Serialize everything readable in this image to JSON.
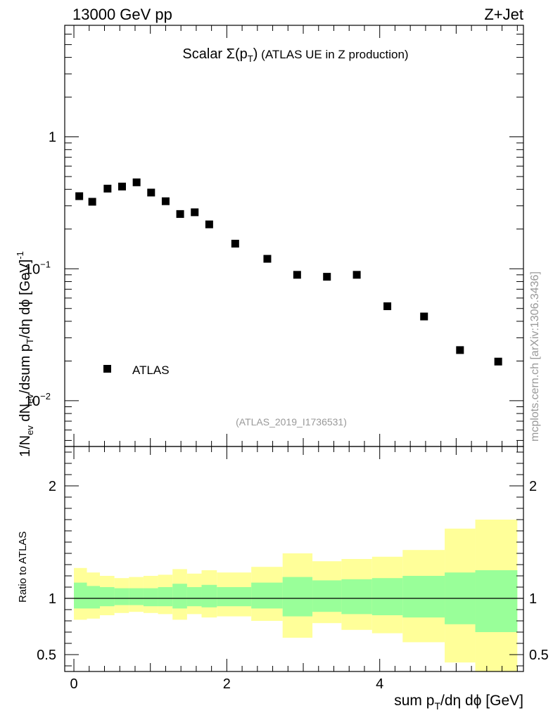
{
  "header": {
    "left_label": "13000 GeV pp",
    "right_label": "Z+Jet"
  },
  "chart_data": {
    "type": "scatter",
    "title_prefix": "Scalar ",
    "title_sigma": "Σ(p",
    "title_sub": "T",
    "title_close": ")",
    "title_suffix": " (ATLAS UE in Z production)",
    "analysis_id": "(ATLAS_2019_I1736531)",
    "watermark": "mcplots.cern.ch [arXiv:1306.3436]",
    "legend": {
      "label": "ATLAS",
      "position": "lower-left"
    },
    "upper_panel": {
      "ylabel_parts": [
        "1/N",
        "ev",
        " dN",
        "ev",
        "/dsum p",
        "T",
        "/dη dϕ  [GeV]",
        "-1"
      ],
      "yscale": "log",
      "ylim": [
        0.0045,
        7.0
      ],
      "yticks": [
        {
          "value": 1,
          "label": "1"
        },
        {
          "value": 0.1,
          "label": "10",
          "exp": "−1"
        },
        {
          "value": 0.01,
          "label": "10",
          "exp": "−2"
        }
      ]
    },
    "lower_panel": {
      "ylabel": "Ratio to ATLAS",
      "ylim": [
        0.35,
        2.35
      ],
      "yticks": [
        {
          "value": 0.5,
          "label": "0.5"
        },
        {
          "value": 1,
          "label": "1"
        },
        {
          "value": 2,
          "label": "2"
        }
      ],
      "reference_line": 1.0
    },
    "x": {
      "label_prefix": "sum p",
      "label_sub": "T",
      "label_suffix": "/dη dϕ [GeV]",
      "xlim": [
        -0.12,
        5.88
      ],
      "xticks": [
        {
          "value": 0,
          "label": "0"
        },
        {
          "value": 2,
          "label": "2"
        },
        {
          "value": 4,
          "label": "4"
        }
      ]
    },
    "series": [
      {
        "name": "ATLAS",
        "marker": "square",
        "color": "#000000",
        "x": [
          0.07,
          0.24,
          0.44,
          0.63,
          0.82,
          1.01,
          1.2,
          1.39,
          1.58,
          1.77,
          2.11,
          2.53,
          2.92,
          3.31,
          3.7,
          4.1,
          4.58,
          5.05,
          5.55
        ],
        "y": [
          0.355,
          0.322,
          0.405,
          0.42,
          0.452,
          0.378,
          0.325,
          0.26,
          0.268,
          0.217,
          0.155,
          0.119,
          0.09,
          0.087,
          0.09,
          0.052,
          0.0435,
          0.0242,
          0.0198
        ]
      }
    ],
    "uncertainty_bands": {
      "colors": {
        "inner": "#99ff99",
        "outer": "#ffff99"
      },
      "bin_edges": [
        0.0,
        0.17,
        0.34,
        0.53,
        0.72,
        0.91,
        1.1,
        1.29,
        1.48,
        1.67,
        1.87,
        2.32,
        2.73,
        3.12,
        3.5,
        3.9,
        4.3,
        4.85,
        5.25,
        5.8
      ],
      "outer_hi": [
        1.27,
        1.23,
        1.2,
        1.18,
        1.19,
        1.2,
        1.21,
        1.26,
        1.22,
        1.25,
        1.23,
        1.28,
        1.4,
        1.33,
        1.35,
        1.37,
        1.43,
        1.62,
        1.7
      ],
      "outer_lo": [
        0.81,
        0.82,
        0.85,
        0.87,
        0.88,
        0.87,
        0.86,
        0.81,
        0.86,
        0.83,
        0.84,
        0.8,
        0.65,
        0.78,
        0.72,
        0.69,
        0.61,
        0.43,
        0.35
      ],
      "inner_hi": [
        1.14,
        1.11,
        1.1,
        1.09,
        1.09,
        1.09,
        1.1,
        1.13,
        1.1,
        1.12,
        1.1,
        1.14,
        1.19,
        1.16,
        1.17,
        1.18,
        1.2,
        1.23,
        1.25
      ],
      "inner_lo": [
        0.91,
        0.91,
        0.93,
        0.94,
        0.94,
        0.93,
        0.93,
        0.91,
        0.93,
        0.92,
        0.93,
        0.91,
        0.84,
        0.88,
        0.86,
        0.85,
        0.83,
        0.77,
        0.7
      ]
    }
  }
}
